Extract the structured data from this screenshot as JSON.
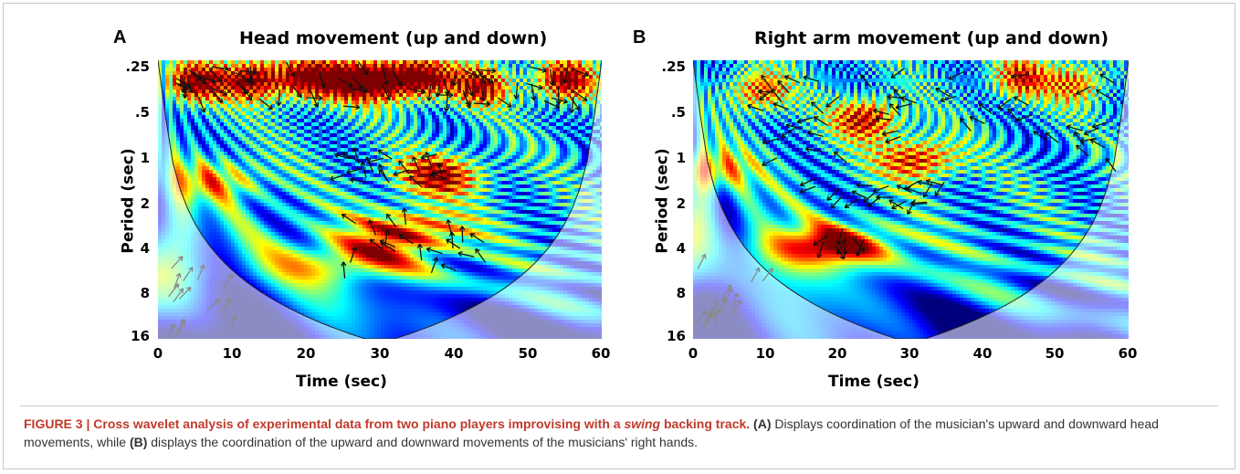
{
  "chart_data": [
    {
      "type": "heatmap",
      "panel_letter": "A",
      "title": "Head movement (up and down)",
      "xlabel": "Time (sec)",
      "ylabel": "Period (sec)",
      "xlim": [
        0,
        60
      ],
      "x_ticks": [
        "0",
        "10",
        "20",
        "30",
        "40",
        "50",
        "60"
      ],
      "y_ticks": [
        ".25",
        ".5",
        "1",
        "2",
        "4",
        "8",
        "16"
      ],
      "y_scale": "log2",
      "ylim": [
        0.25,
        16
      ],
      "hot_regions": [
        {
          "t": 5,
          "p": 0.35,
          "level": 0.95
        },
        {
          "t": 13,
          "p": 0.33,
          "level": 1.0
        },
        {
          "t": 20,
          "p": 0.33,
          "level": 0.95
        },
        {
          "t": 26,
          "p": 0.34,
          "level": 0.9
        },
        {
          "t": 31,
          "p": 0.33,
          "level": 0.95
        },
        {
          "t": 36,
          "p": 0.33,
          "level": 0.9
        },
        {
          "t": 44,
          "p": 0.36,
          "level": 0.8
        },
        {
          "t": 55,
          "p": 0.34,
          "level": 0.95
        },
        {
          "t": 38,
          "p": 1.4,
          "level": 0.85
        },
        {
          "t": 34,
          "p": 3.2,
          "level": 0.75
        },
        {
          "t": 26,
          "p": 5.0,
          "level": 0.6
        },
        {
          "t": 8,
          "p": 1.5,
          "level": 0.55
        }
      ],
      "arrow_regions": [
        {
          "t0": 2,
          "t1": 60,
          "p0": 0.28,
          "p1": 0.5
        },
        {
          "t0": 24,
          "t1": 43,
          "p0": 1.0,
          "p1": 1.6
        },
        {
          "t0": 24,
          "t1": 44,
          "p0": 2.5,
          "p1": 6.0
        }
      ]
    },
    {
      "type": "heatmap",
      "panel_letter": "B",
      "title": "Right arm movement (up and down)",
      "xlabel": "Time (sec)",
      "ylabel": "Period (sec)",
      "xlim": [
        0,
        60
      ],
      "x_ticks": [
        "0",
        "10",
        "20",
        "30",
        "40",
        "50",
        "60"
      ],
      "y_ticks": [
        ".25",
        ".5",
        "1",
        "2",
        "4",
        "8",
        "16"
      ],
      "y_scale": "log2",
      "ylim": [
        0.25,
        16
      ],
      "hot_regions": [
        {
          "t": 19,
          "p": 4.0,
          "level": 1.0
        },
        {
          "t": 24,
          "p": 0.6,
          "level": 0.85
        },
        {
          "t": 31,
          "p": 1.1,
          "level": 0.8
        },
        {
          "t": 9,
          "p": 0.4,
          "level": 0.7
        },
        {
          "t": 45,
          "p": 0.33,
          "level": 0.7
        },
        {
          "t": 53,
          "p": 0.35,
          "level": 0.6
        },
        {
          "t": 2,
          "p": 1.3,
          "level": 0.6
        }
      ],
      "arrow_regions": [
        {
          "t0": 15,
          "t1": 36,
          "p0": 1.5,
          "p1": 2.3
        },
        {
          "t0": 17,
          "t1": 24,
          "p0": 3.4,
          "p1": 4.4
        },
        {
          "t0": 8,
          "t1": 58,
          "p0": 0.3,
          "p1": 1.2
        }
      ]
    }
  ],
  "caption": {
    "lead": "FIGURE 3 | Cross wavelet analysis of experimental data from two piano players improvising with a",
    "lead_italic": "swing",
    "lead_end": "backing track.",
    "a_marker": "(A)",
    "text_a": "Displays coordination of the musician's upward and downward head movements, while",
    "b_marker": "(B)",
    "text_b": "displays the coordination of the upward and downward movements of the musicians' right hands."
  },
  "colors": {
    "colormap": [
      "#00007f",
      "#0000ff",
      "#007fff",
      "#00ffff",
      "#7fff7f",
      "#ffff00",
      "#ff7f00",
      "#ff0000",
      "#7f0000"
    ],
    "caption_lead": "#c03a2b"
  }
}
